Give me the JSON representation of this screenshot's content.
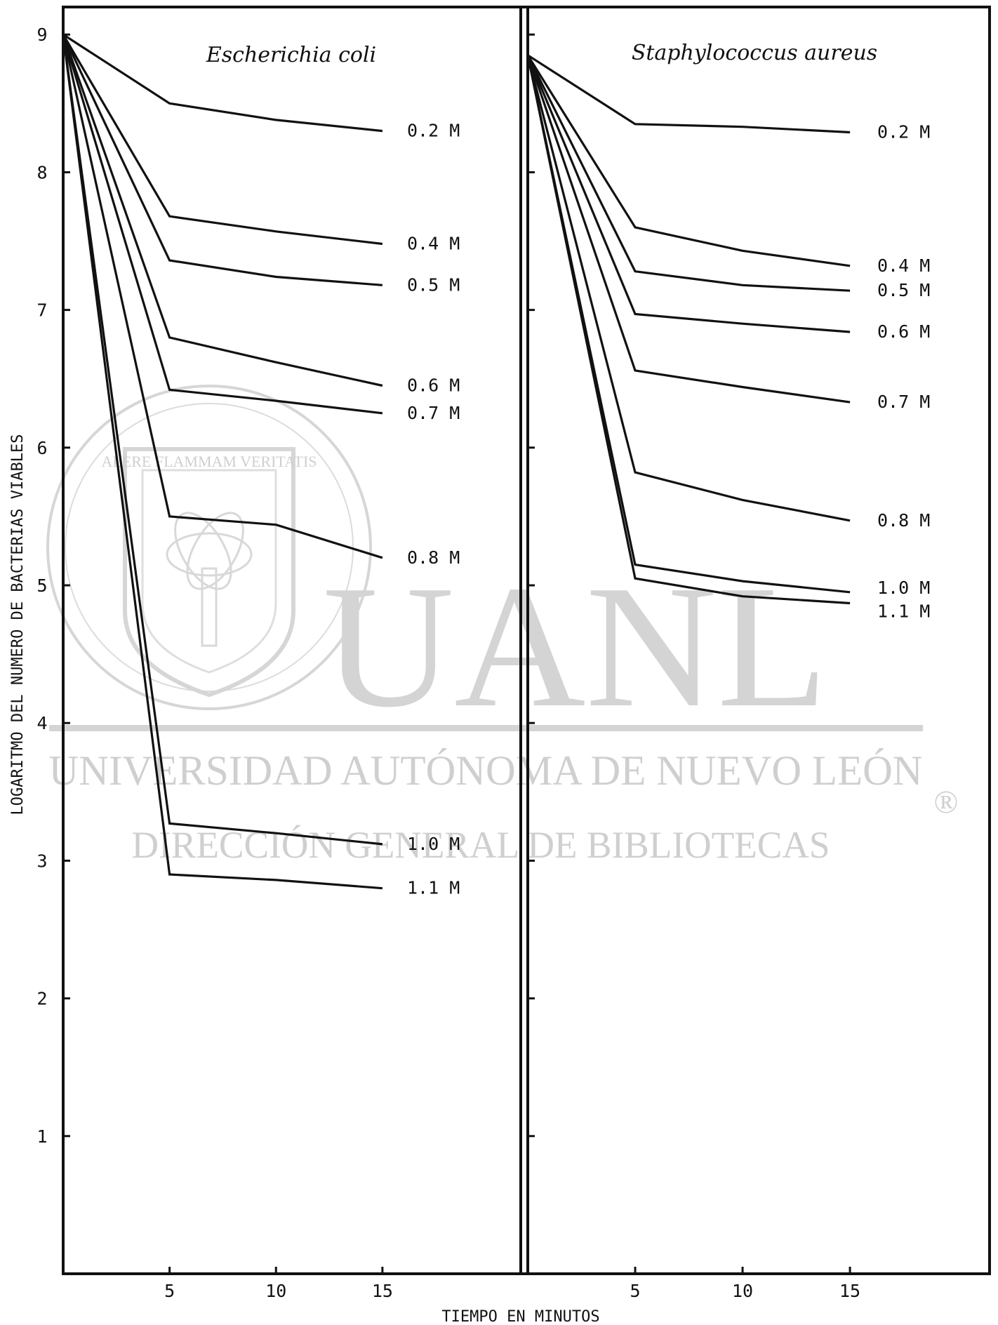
{
  "watermark": {
    "big": "UANL",
    "line1": "UNIVERSIDAD AUTÓNOMA DE NUEVO LEÓN",
    "line2": "DIRECCIÓN GENERAL DE BIBLIOTECAS",
    "registered": "®",
    "seal_motto": "ALERE FLAMMAM VERITATIS"
  },
  "chart_data": [
    {
      "type": "line",
      "title": "Escherichia coli",
      "xlabel": "TIEMPO EN MINUTOS",
      "ylabel": "LOGARITMO DEL NUMERO DE BACTERIAS VIABLES",
      "xticks": [
        5,
        10,
        15
      ],
      "yticks": [
        1,
        2,
        3,
        4,
        5,
        6,
        7,
        8,
        9
      ],
      "xlim": [
        0,
        21.5
      ],
      "ylim": [
        0,
        9.2
      ],
      "x": [
        0,
        5,
        10,
        15
      ],
      "series": [
        {
          "name": "0.2 M",
          "values": [
            9.0,
            8.5,
            8.38,
            8.3
          ]
        },
        {
          "name": "0.4 M",
          "values": [
            9.0,
            7.68,
            7.57,
            7.48
          ]
        },
        {
          "name": "0.5 M",
          "values": [
            9.0,
            7.36,
            7.24,
            7.18
          ]
        },
        {
          "name": "0.6 M",
          "values": [
            9.0,
            6.8,
            6.62,
            6.45
          ]
        },
        {
          "name": "0.7 M",
          "values": [
            9.0,
            6.42,
            6.34,
            6.25
          ]
        },
        {
          "name": "0.8 M",
          "values": [
            9.0,
            5.5,
            5.44,
            5.2
          ]
        },
        {
          "name": "1.0 M",
          "values": [
            9.0,
            3.27,
            3.2,
            3.12
          ]
        },
        {
          "name": "1.1 M",
          "values": [
            9.0,
            2.9,
            2.86,
            2.8
          ]
        }
      ]
    },
    {
      "type": "line",
      "title": "Staphylococcus aureus",
      "xlabel": "TIEMPO EN MINUTOS",
      "ylabel": "",
      "xticks": [
        5,
        10,
        15
      ],
      "yticks": [
        1,
        2,
        3,
        4,
        5,
        6,
        7,
        8,
        9
      ],
      "xlim": [
        0,
        21.5
      ],
      "ylim": [
        0,
        9.2
      ],
      "x": [
        0,
        5,
        10,
        15
      ],
      "series": [
        {
          "name": "0.2 M",
          "values": [
            8.85,
            8.35,
            8.33,
            8.29
          ]
        },
        {
          "name": "0.4 M",
          "values": [
            8.85,
            7.6,
            7.43,
            7.32
          ]
        },
        {
          "name": "0.5 M",
          "values": [
            8.85,
            7.28,
            7.18,
            7.14
          ]
        },
        {
          "name": "0.6 M",
          "values": [
            8.85,
            6.97,
            6.9,
            6.84
          ]
        },
        {
          "name": "0.7 M",
          "values": [
            8.85,
            6.56,
            6.44,
            6.33
          ]
        },
        {
          "name": "0.8 M",
          "values": [
            8.85,
            5.82,
            5.62,
            5.47
          ]
        },
        {
          "name": "1.0 M",
          "values": [
            8.85,
            5.15,
            5.03,
            4.95
          ]
        },
        {
          "name": "1.1 M",
          "values": [
            8.85,
            5.05,
            4.92,
            4.87
          ]
        }
      ]
    }
  ]
}
